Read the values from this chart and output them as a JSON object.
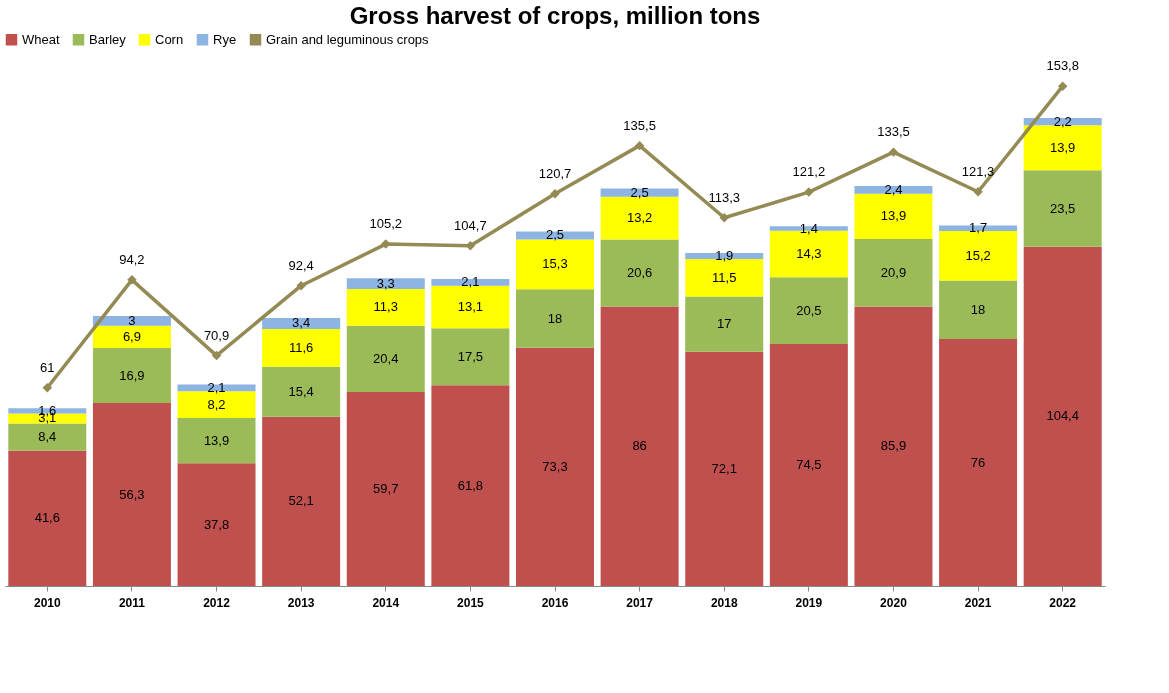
{
  "chart_data": {
    "type": "bar",
    "title": "Gross harvest of crops, million tons",
    "stacked": true,
    "legend": "top",
    "grid": false,
    "tick_labels": "x",
    "categories": [
      "2010",
      "2011",
      "2012",
      "2013",
      "2014",
      "2015",
      "2016",
      "2017",
      "2018",
      "2019",
      "2020",
      "2021",
      "2022"
    ],
    "series": [
      {
        "name": "Wheat",
        "color": "#c0504d",
        "values": [
          41.6,
          56.3,
          37.8,
          52.1,
          59.7,
          61.8,
          73.3,
          86,
          72.1,
          74.5,
          85.9,
          76,
          104.4
        ],
        "value_labels": [
          "41,6",
          "56,3",
          "37,8",
          "52,1",
          "59,7",
          "61,8",
          "73,3",
          "86",
          "72,1",
          "74,5",
          "85,9",
          "76",
          "104,4"
        ]
      },
      {
        "name": "Barley",
        "color": "#9bbb59",
        "values": [
          8.4,
          16.9,
          13.9,
          15.4,
          20.4,
          17.5,
          18,
          20.6,
          17,
          20.5,
          20.9,
          18,
          23.5
        ],
        "value_labels": [
          "8,4",
          "16,9",
          "13,9",
          "15,4",
          "20,4",
          "17,5",
          "18",
          "20,6",
          "17",
          "20,5",
          "20,9",
          "18",
          "23,5"
        ]
      },
      {
        "name": "Corn",
        "color": "#ffff00",
        "values": [
          3.1,
          6.9,
          8.2,
          11.6,
          11.3,
          13.1,
          15.3,
          13.2,
          11.5,
          14.3,
          13.9,
          15.2,
          13.9
        ],
        "value_labels": [
          "3,1",
          "6,9",
          "8,2",
          "11,6",
          "11,3",
          "13,1",
          "15,3",
          "13,2",
          "11,5",
          "14,3",
          "13,9",
          "15,2",
          "13,9"
        ]
      },
      {
        "name": "Rye",
        "color": "#8db4e2",
        "values": [
          1.6,
          3,
          2.1,
          3.4,
          3.3,
          2.1,
          2.5,
          2.5,
          1.9,
          1.4,
          2.4,
          1.7,
          2.2
        ],
        "value_labels": [
          "1,6",
          "3",
          "2,1",
          "3,4",
          "3,3",
          "2,1",
          "2,5",
          "2,5",
          "1,9",
          "1,4",
          "2,4",
          "1,7",
          "2,2"
        ]
      },
      {
        "name": "Grain and leguminous crops",
        "type": "line",
        "color": "#948a54",
        "marker": "diamond",
        "values": [
          61,
          94.2,
          70.9,
          92.4,
          105.2,
          104.7,
          120.7,
          135.5,
          113.3,
          121.2,
          133.5,
          121.3,
          153.8
        ],
        "value_labels": [
          "61",
          "94,2",
          "70,9",
          "92,4",
          "105,2",
          "104,7",
          "120,7",
          "135,5",
          "113,3",
          "121,2",
          "133,5",
          "121,3",
          "153,8"
        ]
      }
    ]
  }
}
